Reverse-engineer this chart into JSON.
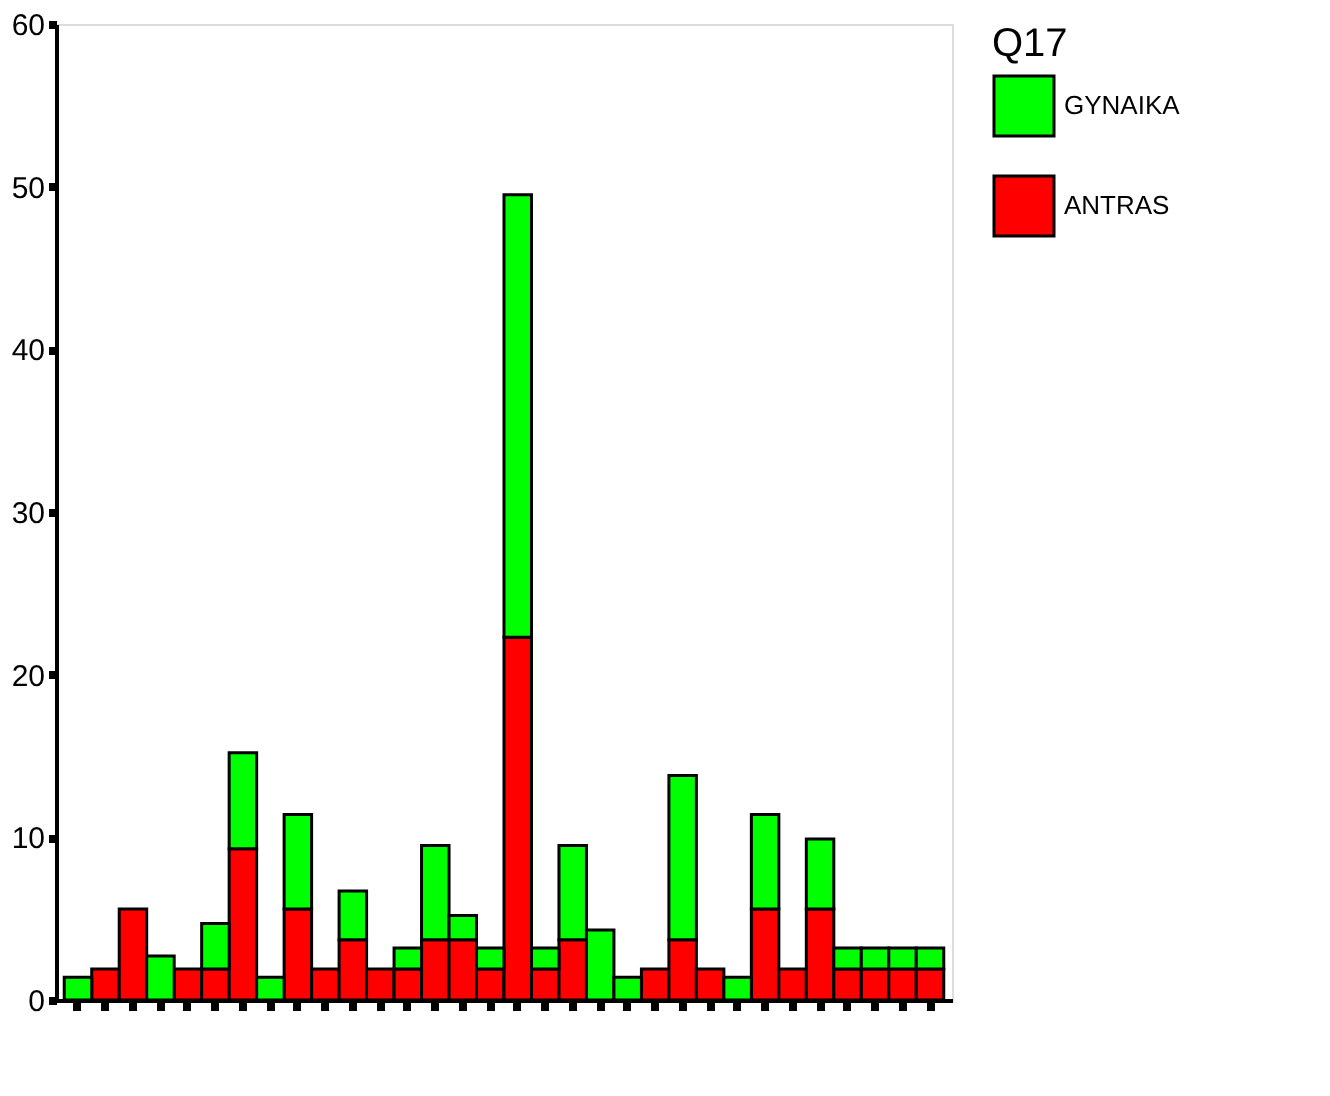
{
  "chart_data": {
    "type": "bar",
    "stacked": true,
    "legend_title": "Q17",
    "legend": "right",
    "grid": false,
    "categories": [
      null,
      null,
      null,
      null,
      null,
      null,
      null,
      null,
      null,
      null,
      null,
      null,
      null,
      null,
      null,
      null,
      null,
      null,
      null,
      null,
      null,
      null,
      null,
      null,
      null,
      null,
      null,
      null,
      null,
      null,
      null,
      null
    ],
    "series": [
      {
        "name": "ANTRAS",
        "color": "#ff0000",
        "values": [
          0,
          1.9,
          5.6,
          0,
          1.9,
          1.9,
          9.3,
          0,
          5.6,
          1.9,
          3.7,
          1.9,
          1.9,
          3.7,
          3.7,
          1.9,
          22.3,
          1.9,
          3.7,
          0,
          0,
          1.9,
          3.7,
          1.9,
          0,
          5.6,
          1.9,
          5.6,
          1.9,
          1.9,
          1.9,
          1.9
        ]
      },
      {
        "name": "GYNAIKA",
        "color": "#00ff00",
        "values": [
          1.4,
          0,
          0,
          2.7,
          0,
          2.8,
          5.9,
          1.4,
          5.8,
          0,
          3.0,
          0,
          1.3,
          5.8,
          1.5,
          1.3,
          27.2,
          1.3,
          5.8,
          4.3,
          1.4,
          0,
          10.1,
          0,
          1.4,
          5.8,
          0,
          4.3,
          1.3,
          1.3,
          1.3,
          1.3
        ]
      }
    ],
    "ylim": [
      0,
      60
    ],
    "yticks": [
      0,
      10,
      20,
      30,
      40,
      50,
      60
    ]
  }
}
